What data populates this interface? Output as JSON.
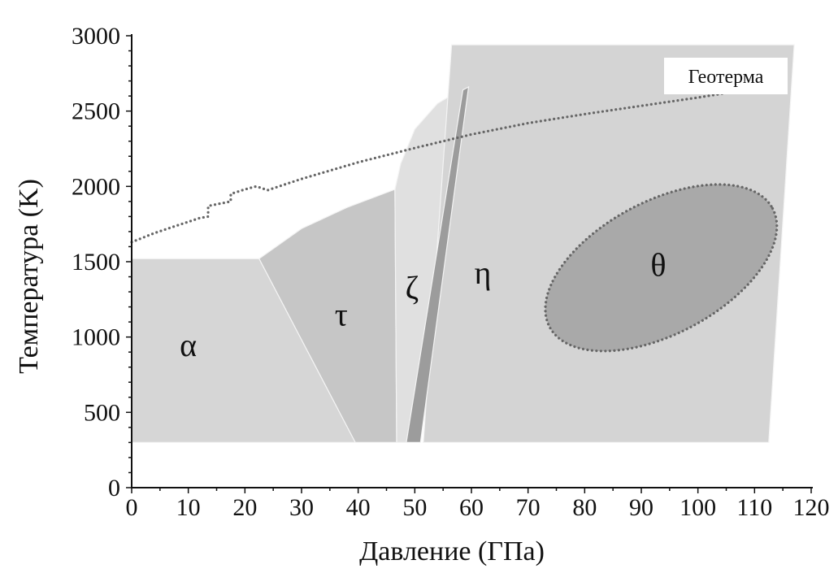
{
  "chart_data": {
    "type": "area",
    "title": "",
    "xlabel": "Давление (ГПа)",
    "ylabel": "Температура (K)",
    "xlim": [
      0,
      120
    ],
    "ylim": [
      0,
      3000
    ],
    "x_ticks": [
      "0",
      "10",
      "20",
      "30",
      "40",
      "50",
      "60",
      "70",
      "80",
      "90",
      "100",
      "110",
      "120"
    ],
    "y_ticks": [
      "0",
      "500",
      "1000",
      "1500",
      "2000",
      "2500",
      "3000"
    ],
    "grid": false,
    "colors": {
      "alpha": "#d6d6d6",
      "tau": "#c6c6c6",
      "zeta": "#e0e0e0",
      "eta": "#d4d4d4",
      "band": "#9c9c9c",
      "theta": "#a9a9a9",
      "dots": "#666666"
    },
    "regions": [
      {
        "name": "α",
        "label_at": [
          10,
          940
        ],
        "color": "alpha",
        "boundary": [
          [
            0,
            300
          ],
          [
            0,
            1520
          ],
          [
            22.5,
            1520
          ],
          [
            39.5,
            300
          ]
        ]
      },
      {
        "name": "τ",
        "label_at": [
          37,
          1140
        ],
        "color": "tau",
        "boundary": [
          [
            22.5,
            1520
          ],
          [
            30,
            1720
          ],
          [
            38,
            1860
          ],
          [
            46.5,
            1980
          ],
          [
            46.8,
            300
          ],
          [
            39.5,
            300
          ]
        ]
      },
      {
        "name": "ζ",
        "label_at": [
          49.5,
          1320
        ],
        "color": "zeta",
        "boundary": [
          [
            46.8,
            300
          ],
          [
            46.5,
            1980
          ],
          [
            47.5,
            2150
          ],
          [
            50,
            2380
          ],
          [
            54,
            2550
          ],
          [
            58.5,
            2650
          ],
          [
            49,
            300
          ]
        ]
      },
      {
        "name": "η",
        "label_at": [
          62,
          1420
        ],
        "color": "eta",
        "boundary": [
          [
            51.5,
            300
          ],
          [
            56.5,
            2940
          ],
          [
            117,
            2940
          ],
          [
            112.5,
            300
          ]
        ]
      },
      {
        "name": "",
        "label_at": null,
        "color": "band",
        "boundary": [
          [
            48.5,
            300
          ],
          [
            58.5,
            2640
          ],
          [
            59.5,
            2660
          ],
          [
            51,
            300
          ]
        ]
      }
    ],
    "theta_region": {
      "name": "θ",
      "label_at": [
        93,
        1470
      ],
      "center": [
        93.5,
        1460
      ],
      "x_radius": 22.3,
      "y_radius": 440,
      "rotation_deg": -28
    },
    "geotherm": {
      "name": "Геотерма",
      "x": [
        0,
        4,
        8,
        12,
        13.5,
        13.5,
        17.5,
        17.5,
        20,
        22,
        24,
        30,
        40,
        50,
        60,
        70,
        80,
        90,
        100,
        105
      ],
      "y": [
        1630,
        1690,
        1740,
        1790,
        1800,
        1870,
        1900,
        1950,
        1980,
        2000,
        1975,
        2050,
        2160,
        2255,
        2345,
        2420,
        2480,
        2535,
        2590,
        2620
      ]
    }
  }
}
